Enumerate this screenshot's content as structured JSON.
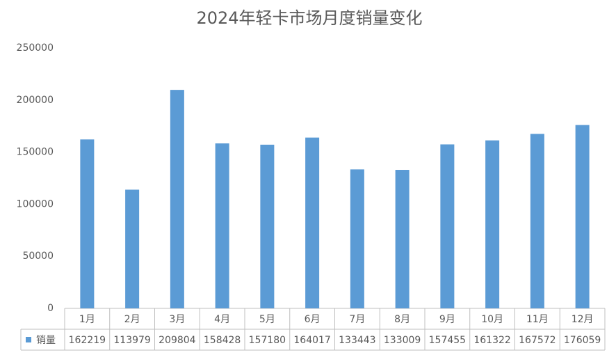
{
  "chart_data": {
    "type": "bar",
    "title": "2024年轻卡市场月度销量变化",
    "categories": [
      "1月",
      "2月",
      "3月",
      "4月",
      "5月",
      "6月",
      "7月",
      "8月",
      "9月",
      "10月",
      "11月",
      "12月"
    ],
    "series": [
      {
        "name": "销量",
        "color": "#5b9bd5",
        "values": [
          162219,
          113979,
          209804,
          158428,
          157180,
          164017,
          133443,
          133009,
          157455,
          161322,
          167572,
          176059
        ]
      }
    ],
    "ylim": [
      0,
      250000
    ],
    "yticks": [
      0,
      50000,
      100000,
      150000,
      200000,
      250000
    ],
    "grid": false,
    "data_table": true
  }
}
